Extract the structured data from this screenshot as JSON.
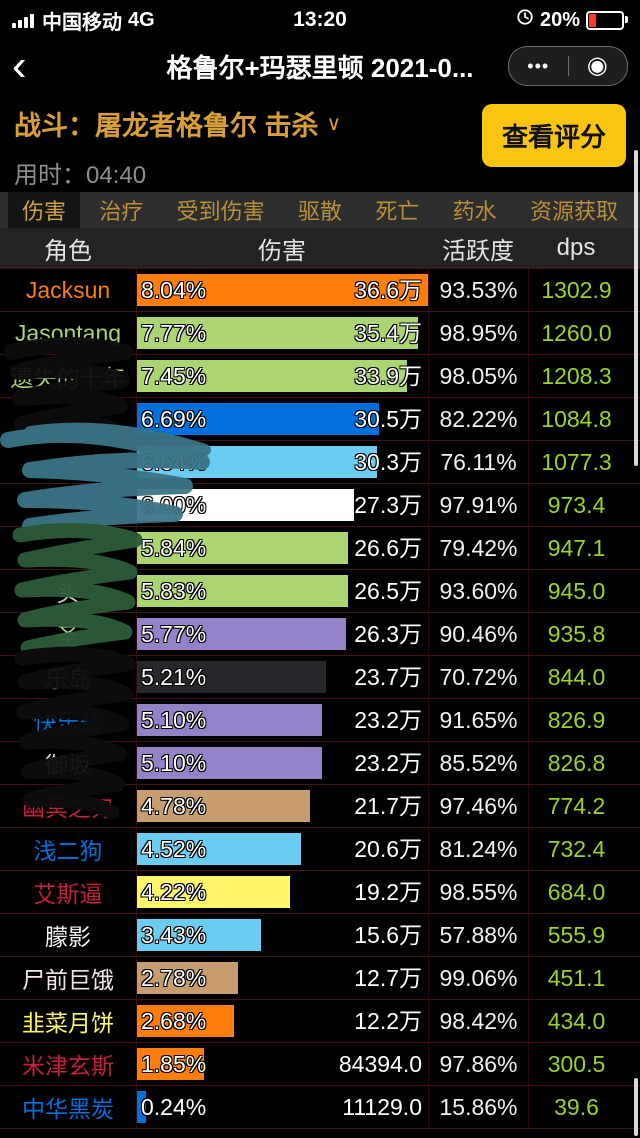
{
  "status_bar": {
    "carrier": "中国移动",
    "network": "4G",
    "time": "13:20",
    "battery_percent": "20%"
  },
  "icons": {
    "signal": "signal-bars-css-shape",
    "clock": "clock-svg-shape",
    "battery": "battery-css-shape",
    "back": "‹",
    "more": "•••",
    "capsule_target": "◉",
    "chevron_down": "∨"
  },
  "nav": {
    "title": "格鲁尔+玛瑟里顿 2021-0..."
  },
  "fight": {
    "label": "战斗：屠龙者格鲁尔 击杀",
    "duration": "用时：04:40",
    "score_button": "查看评分"
  },
  "tabs": [
    {
      "label": "伤害",
      "selected": true
    },
    {
      "label": "治疗",
      "selected": false
    },
    {
      "label": "受到伤害",
      "selected": false
    },
    {
      "label": "驱散",
      "selected": false
    },
    {
      "label": "死亡",
      "selected": false
    },
    {
      "label": "药水",
      "selected": false
    },
    {
      "label": "资源获取",
      "selected": false
    }
  ],
  "table": {
    "headers": [
      "角色",
      "伤害",
      "活跃度",
      "dps"
    ],
    "max_percent": 8.04,
    "rows": [
      {
        "name": "Jacksun",
        "name_color": "#ff7d0a",
        "bar_color": "#ff7d0a",
        "percent": "8.04%",
        "pct": 8.04,
        "damage": "36.6万",
        "active": "93.53%",
        "dps": "1302.9"
      },
      {
        "name": "Jasontang",
        "name_color": "#abd473",
        "bar_color": "#abd473",
        "percent": "7.77%",
        "pct": 7.77,
        "damage": "35.4万",
        "active": "98.95%",
        "dps": "1260.0"
      },
      {
        "name": "遗失的十年",
        "name_color": "#abd473",
        "bar_color": "#abd473",
        "percent": "7.45%",
        "pct": 7.45,
        "damage": "33.9万",
        "active": "98.05%",
        "dps": "1208.3"
      },
      {
        "name": "",
        "name_color": "#cccccc",
        "bar_color": "#0070dd",
        "percent": "6.69%",
        "pct": 6.69,
        "damage": "30.5万",
        "active": "82.22%",
        "dps": "1084.8"
      },
      {
        "name": "",
        "name_color": "#cccccc",
        "bar_color": "#69ccf0",
        "percent": "6.64%",
        "pct": 6.64,
        "damage": "30.3万",
        "active": "76.11%",
        "dps": "1077.3"
      },
      {
        "name": "",
        "name_color": "#cccccc",
        "bar_color": "#ffffff",
        "percent": "6.00%",
        "pct": 6.0,
        "damage": "27.3万",
        "active": "97.91%",
        "dps": "973.4"
      },
      {
        "name": "",
        "name_color": "#cccccc",
        "bar_color": "#abd473",
        "percent": "5.84%",
        "pct": 5.84,
        "damage": "26.6万",
        "active": "79.42%",
        "dps": "947.1"
      },
      {
        "name": "头",
        "name_color": "#cccccc",
        "bar_color": "#abd473",
        "percent": "5.83%",
        "pct": 5.83,
        "damage": "26.5万",
        "active": "93.60%",
        "dps": "945.0"
      },
      {
        "name": "圣",
        "name_color": "#abd473",
        "bar_color": "#9482c9",
        "percent": "5.77%",
        "pct": 5.77,
        "damage": "26.3万",
        "active": "90.46%",
        "dps": "935.8"
      },
      {
        "name": "乐岛",
        "name_color": "#cccccc",
        "bar_color": "#26262b",
        "percent": "5.21%",
        "pct": 5.21,
        "damage": "23.7万",
        "active": "70.72%",
        "dps": "844.0"
      },
      {
        "name": "快乐盐",
        "name_color": "#0070dd",
        "bar_color": "#9482c9",
        "percent": "5.10%",
        "pct": 5.1,
        "damage": "23.2万",
        "active": "91.65%",
        "dps": "826.9"
      },
      {
        "name": "御坂",
        "name_color": "#efe3cd",
        "bar_color": "#9482c9",
        "percent": "5.10%",
        "pct": 5.1,
        "damage": "23.2万",
        "active": "85.52%",
        "dps": "826.8"
      },
      {
        "name": "幽冥之刃",
        "name_color": "#c41f3b",
        "bar_color": "#c79c6e",
        "percent": "4.78%",
        "pct": 4.78,
        "damage": "21.7万",
        "active": "97.46%",
        "dps": "774.2"
      },
      {
        "name": "浅二狗",
        "name_color": "#0070dd",
        "bar_color": "#69ccf0",
        "percent": "4.52%",
        "pct": 4.52,
        "damage": "20.6万",
        "active": "81.24%",
        "dps": "732.4"
      },
      {
        "name": "艾斯逼",
        "name_color": "#c41f3b",
        "bar_color": "#fff569",
        "percent": "4.22%",
        "pct": 4.22,
        "damage": "19.2万",
        "active": "98.55%",
        "dps": "684.0"
      },
      {
        "name": "朦影",
        "name_color": "#f5f5f5",
        "bar_color": "#69ccf0",
        "percent": "3.43%",
        "pct": 3.43,
        "damage": "15.6万",
        "active": "57.88%",
        "dps": "555.9"
      },
      {
        "name": "尸前巨饿",
        "name_color": "#f2e4e4",
        "bar_color": "#c79c6e",
        "percent": "2.78%",
        "pct": 2.78,
        "damage": "12.7万",
        "active": "99.06%",
        "dps": "451.1"
      },
      {
        "name": "韭菜月饼",
        "name_color": "#fff569",
        "bar_color": "#ff7d0a",
        "percent": "2.68%",
        "pct": 2.68,
        "damage": "12.2万",
        "active": "98.42%",
        "dps": "434.0"
      },
      {
        "name": "米津玄斯",
        "name_color": "#c41f3b",
        "bar_color": "#ff7d0a",
        "percent": "1.85%",
        "pct": 1.85,
        "damage": "84394.0",
        "active": "97.86%",
        "dps": "300.5"
      },
      {
        "name": "中华黑炭",
        "name_color": "#0070dd",
        "bar_color": "#0070dd",
        "percent": "0.24%",
        "pct": 0.24,
        "damage": "11129.0",
        "active": "15.86%",
        "dps": "39.6"
      }
    ]
  },
  "colors": {
    "accent_gold": "#d79f35",
    "button_yellow": "#f9c511",
    "dps_green": "#9bd522",
    "row_divider_red": "#471111",
    "battery_low_red": "#ff3b30"
  }
}
